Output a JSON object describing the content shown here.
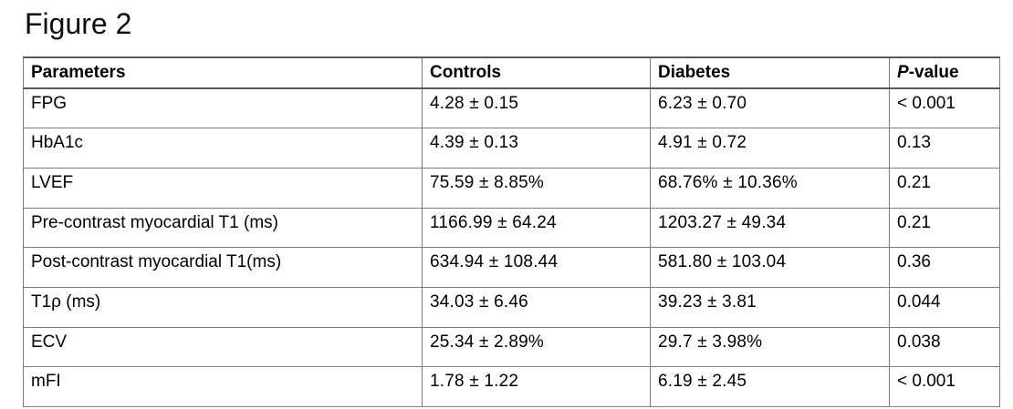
{
  "title": "Figure 2",
  "table": {
    "headers": {
      "parameters": "Parameters",
      "controls": "Controls",
      "diabetes": "Diabetes",
      "pvalue_italic": "P",
      "pvalue_rest": "-value"
    },
    "rows": [
      {
        "cells": [
          "FPG",
          "4.28 ± 0.15",
          "6.23 ± 0.70",
          "< 0.001"
        ]
      },
      {
        "cells": [
          "HbA1c",
          "4.39 ± 0.13",
          "4.91 ± 0.72",
          "0.13"
        ]
      },
      {
        "cells": [
          "LVEF",
          "75.59 ± 8.85%",
          "68.76% ± 10.36%",
          "0.21"
        ]
      },
      {
        "cells": [
          "Pre-contrast myocardial T1 (ms)",
          "1166.99 ± 64.24",
          "1203.27 ± 49.34",
          "0.21"
        ]
      },
      {
        "cells": [
          "Post-contrast myocardial T1(ms)",
          "634.94 ± 108.44",
          "581.80 ± 103.04",
          "0.36"
        ]
      },
      {
        "cells": [
          "T1ρ (ms)",
          "34.03 ± 6.46",
          "39.23 ± 3.81",
          "0.044"
        ]
      },
      {
        "cells": [
          "ECV",
          "25.34 ± 2.89%",
          "29.7 ± 3.98%",
          "0.038"
        ]
      },
      {
        "cells": [
          "mFI",
          "1.78 ± 1.22",
          "6.19 ± 2.45",
          "< 0.001"
        ]
      }
    ]
  },
  "colors": {
    "background": "#ffffff",
    "text": "#000000",
    "border_inner": "#7d7d7d",
    "border_heavy": "#595959"
  }
}
